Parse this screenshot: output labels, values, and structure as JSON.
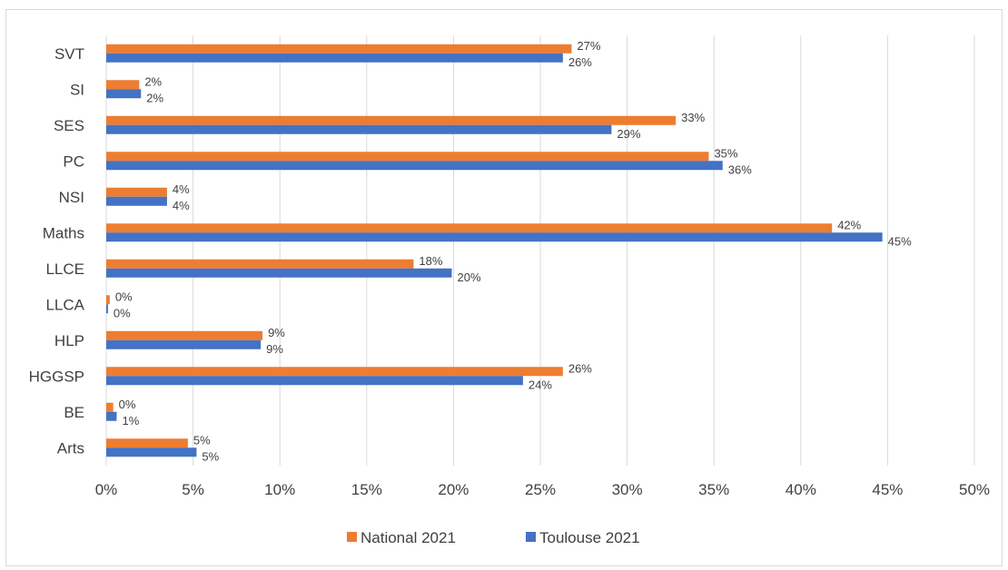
{
  "chart_data": {
    "type": "bar",
    "orientation": "horizontal",
    "categories": [
      "Arts",
      "BE",
      "HGGSP",
      "HLP",
      "LLCA",
      "LLCE",
      "Maths",
      "NSI",
      "PC",
      "SES",
      "SI",
      "SVT"
    ],
    "series": [
      {
        "name": "National 2021",
        "color": "#ED7D31",
        "values": [
          4.7,
          0.4,
          26.3,
          9.0,
          0.2,
          17.7,
          41.8,
          3.5,
          34.7,
          32.8,
          1.9,
          26.8
        ],
        "labels": [
          "5%",
          "0%",
          "26%",
          "9%",
          "0%",
          "18%",
          "42%",
          "4%",
          "35%",
          "33%",
          "2%",
          "27%"
        ]
      },
      {
        "name": "Toulouse 2021",
        "color": "#4472C4",
        "values": [
          5.2,
          0.6,
          24.0,
          8.9,
          0.1,
          19.9,
          44.7,
          3.5,
          35.5,
          29.1,
          2.0,
          26.3
        ],
        "labels": [
          "5%",
          "1%",
          "24%",
          "9%",
          "0%",
          "20%",
          "45%",
          "4%",
          "36%",
          "29%",
          "2%",
          "26%"
        ]
      }
    ],
    "xlim": [
      0,
      50
    ],
    "x_ticks": [
      "0%",
      "5%",
      "10%",
      "15%",
      "20%",
      "25%",
      "30%",
      "35%",
      "40%",
      "45%",
      "50%"
    ],
    "grid": "vertical",
    "grid_color": "#d9d9d9",
    "legend_position": "bottom",
    "title": "",
    "xlabel": "",
    "ylabel": ""
  }
}
